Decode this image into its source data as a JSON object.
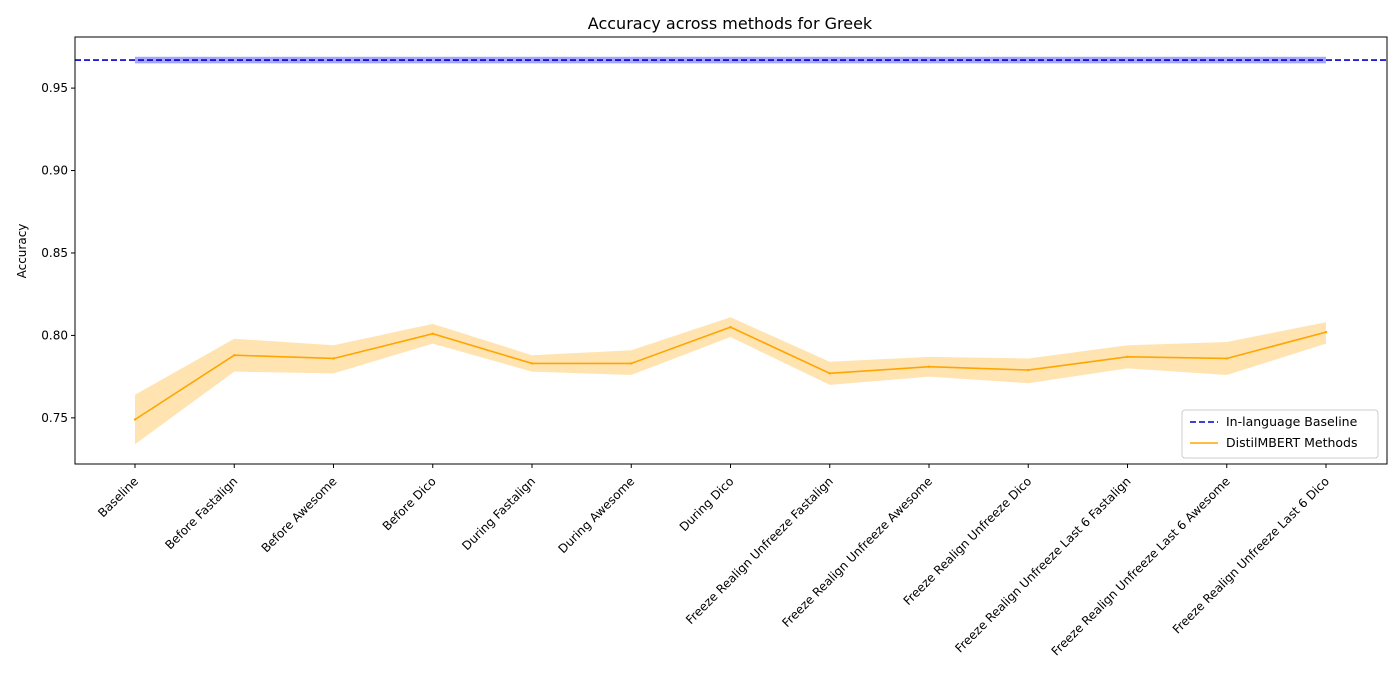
{
  "chart_data": {
    "type": "line",
    "title": "Accuracy across methods for Greek",
    "xlabel": "",
    "ylabel": "Accuracy",
    "ylim": [
      0.722,
      0.981
    ],
    "yticks": [
      0.75,
      0.8,
      0.85,
      0.9,
      0.95
    ],
    "ytick_labels": [
      "0.75",
      "0.80",
      "0.85",
      "0.90",
      "0.95"
    ],
    "grid": false,
    "legend_position": "lower-right",
    "categories": [
      "Baseline",
      "Before Fastalign",
      "Before Awesome",
      "Before Dico",
      "During Fastalign",
      "During Awesome",
      "During Dico",
      "Freeze Realign Unfreeze Fastalign",
      "Freeze Realign Unfreeze Awesome",
      "Freeze Realign Unfreeze Dico",
      "Freeze Realign Unfreeze Last 6 Fastalign",
      "Freeze Realign Unfreeze Last 6 Awesome",
      "Freeze Realign Unfreeze Last 6 Dico"
    ],
    "series": [
      {
        "name": "In-language Baseline",
        "style": "dashed",
        "color": "#0000cc",
        "band_color": "#0000ff",
        "value": 0.967,
        "band": [
          0.965,
          0.969
        ]
      },
      {
        "name": "DistilMBERT Methods",
        "style": "solid",
        "color": "#ffa500",
        "band_color": "#ffa500",
        "values": [
          0.749,
          0.788,
          0.786,
          0.801,
          0.783,
          0.783,
          0.805,
          0.777,
          0.781,
          0.779,
          0.787,
          0.786,
          0.802
        ],
        "lower": [
          0.734,
          0.778,
          0.777,
          0.795,
          0.778,
          0.776,
          0.799,
          0.77,
          0.775,
          0.771,
          0.78,
          0.776,
          0.795
        ],
        "upper": [
          0.764,
          0.798,
          0.794,
          0.807,
          0.788,
          0.791,
          0.811,
          0.784,
          0.787,
          0.786,
          0.794,
          0.796,
          0.808
        ]
      }
    ]
  }
}
